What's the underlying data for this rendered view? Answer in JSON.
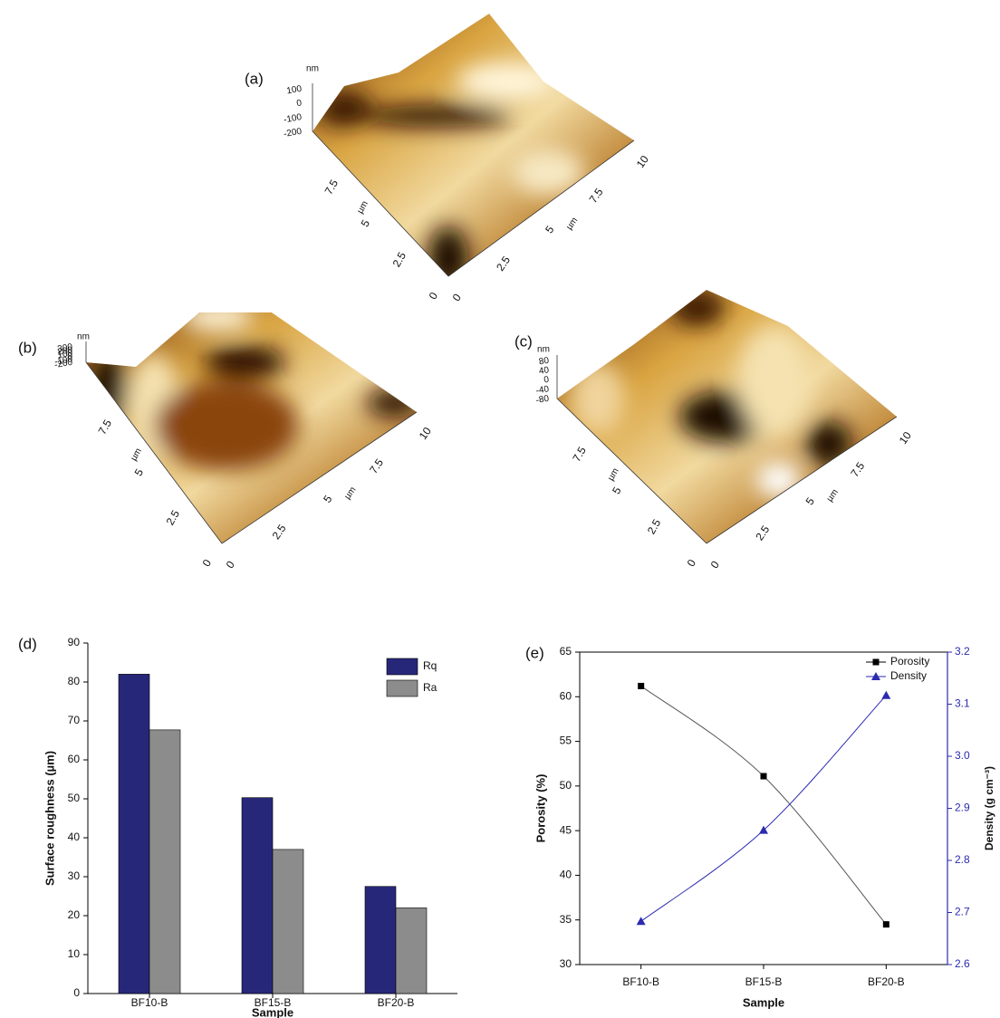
{
  "panels": [
    {
      "label": "(a)",
      "z_unit": "nm",
      "z_ticks": [
        "100",
        "0",
        "-100",
        "-200"
      ],
      "left_ticks": [
        "0",
        "2.5",
        "5",
        "7.5"
      ],
      "right_ticks": [
        "0",
        "2.5",
        "5",
        "7.5",
        "10"
      ],
      "unit": "µm"
    },
    {
      "label": "(b)",
      "z_unit": "nm",
      "z_ticks": [
        "300",
        "200",
        "100",
        "0",
        "-100",
        "-200"
      ],
      "left_ticks": [
        "0",
        "2.5",
        "5",
        "7.5"
      ],
      "right_ticks": [
        "0",
        "2.5",
        "5",
        "7.5",
        "10"
      ],
      "unit": "µm"
    },
    {
      "label": "(c)",
      "z_unit": "nm",
      "z_ticks": [
        "80",
        "40",
        "0",
        "-40",
        "-80"
      ],
      "left_ticks": [
        "0",
        "2.5",
        "5",
        "7.5"
      ],
      "right_ticks": [
        "0",
        "2.5",
        "5",
        "7.5",
        "10"
      ],
      "unit": "µm"
    }
  ],
  "chart_data": [
    {
      "type": "bar",
      "panel_label": "(d)",
      "x_label": "Sample",
      "y_label": "Surface roughness (µm)",
      "categories": [
        "BF10-B",
        "BF15-B",
        "BF20-B"
      ],
      "series": [
        {
          "name": "Rq",
          "color": "#27277a",
          "values": [
            82,
            50.3,
            27.5
          ]
        },
        {
          "name": "Ra",
          "color": "#8c8c8c",
          "values": [
            67.7,
            37,
            22
          ]
        }
      ],
      "ylim": [
        0,
        90
      ],
      "yticks": [
        0,
        10,
        20,
        30,
        40,
        50,
        60,
        70,
        80,
        90
      ],
      "legend": "top-right"
    },
    {
      "type": "line",
      "panel_label": "(e)",
      "x_label": "Sample",
      "y_label": "Porosity (%)",
      "y2_label": "Density (g cm⁻³)",
      "categories": [
        "BF10-B",
        "BF15-B",
        "BF20-B"
      ],
      "series": [
        {
          "name": "Porosity",
          "color": "#000000",
          "marker": "square",
          "values": [
            61.2,
            51.1,
            34.5
          ]
        },
        {
          "name": "Density",
          "color": "#2b2bb0",
          "marker": "triangle",
          "axis": "y2",
          "values": [
            2.683,
            2.858,
            3.117
          ]
        }
      ],
      "ylim": [
        30,
        65
      ],
      "yticks": [
        30,
        35,
        40,
        45,
        50,
        55,
        60,
        65
      ],
      "y2lim": [
        2.6,
        3.2
      ],
      "y2ticks": [
        2.6,
        2.7,
        2.8,
        2.9,
        {
          "value": 3,
          "label": "3.0"
        },
        3.1,
        3.2
      ],
      "legend": "top-right"
    }
  ]
}
